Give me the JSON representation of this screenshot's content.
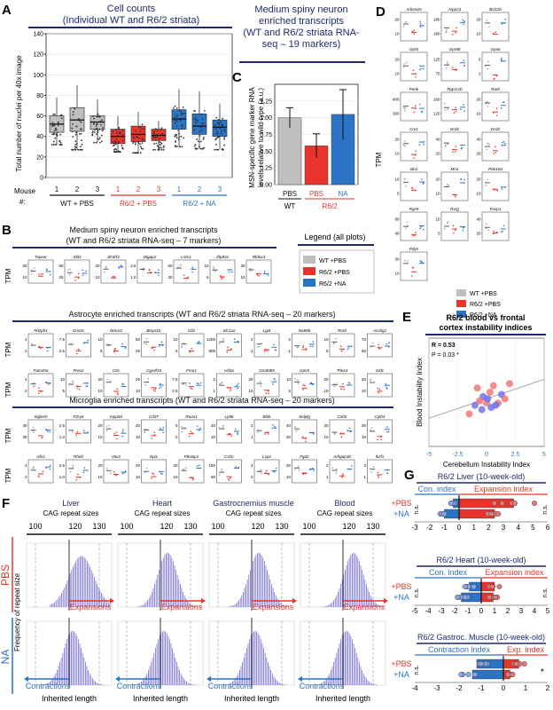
{
  "colors": {
    "wt": "#bfbfbf",
    "r62pbs": "#e8342b",
    "r62na": "#2b73c4",
    "navy": "#1f2a6b",
    "red": "#e8342b",
    "blue": "#2b73c4",
    "hist": "#7a6fd6"
  },
  "panelA": {
    "label": "A",
    "title": [
      "Cell counts",
      "(Individual WT and R6/2 striata)"
    ],
    "ylabel": "Total number of nuclei per 40x image",
    "mouse_label": "Mouse #:",
    "chart_data": {
      "type": "box",
      "ylim": [
        0,
        140
      ],
      "yticks": [
        0,
        20,
        40,
        60,
        80,
        100,
        120,
        140
      ],
      "groups": [
        {
          "name": "WT + PBS",
          "mice": [
            "1",
            "2",
            "3"
          ],
          "medians": [
            52,
            56,
            54
          ],
          "q1": [
            44,
            45,
            47
          ],
          "q3": [
            60,
            68,
            60
          ],
          "wmin": [
            32,
            27,
            34
          ],
          "wmax": [
            78,
            90,
            76
          ]
        },
        {
          "name": "R6/2 + PBS",
          "mice": [
            "1",
            "2",
            "3"
          ],
          "medians": [
            40,
            42,
            41
          ],
          "q1": [
            33,
            35,
            36
          ],
          "q3": [
            47,
            50,
            47
          ],
          "wmin": [
            25,
            24,
            27
          ],
          "wmax": [
            60,
            64,
            55
          ]
        },
        {
          "name": "R6/2 + NA",
          "mice": [
            "1",
            "2",
            "3"
          ],
          "medians": [
            57,
            50,
            49
          ],
          "q1": [
            47,
            42,
            40
          ],
          "q3": [
            66,
            62,
            56
          ],
          "wmin": [
            30,
            28,
            27
          ],
          "wmax": [
            86,
            84,
            72
          ]
        }
      ]
    }
  },
  "panelB": {
    "label": "B",
    "sections": [
      {
        "title": [
          "Medium spiny neuron enriched transcripts",
          "(WT and R6/2 striata RNA-seq – 7 markers)"
        ],
        "rows": [
          [
            {
              "g": "Tspear",
              "t": [
                "20",
                "10"
              ]
            },
            {
              "g": "Slit3",
              "t": [
                "50",
                "25"
              ]
            },
            {
              "g": "Sh3rf2",
              "t": [
                "20",
                "10"
              ]
            },
            {
              "g": "Dlgap2",
              "t": [
                "2.5",
                "1.0"
              ]
            },
            {
              "g": "Lrtm1",
              "t": [
                "60",
                "30"
              ]
            },
            {
              "g": "Zfp831",
              "t": [
                "10",
                "5"
              ]
            },
            {
              "g": "Rbfox3",
              "t": [
                "20",
                "10"
              ]
            }
          ]
        ]
      },
      {
        "title": [
          "Astrocyte enriched transcripts (WT and R6/2 striata RNA-seq – 20 markers)"
        ],
        "rows": [
          [
            {
              "g": "Pdzph1",
              "t": [
                "4",
                "2"
              ]
            },
            {
              "g": "Grin2c",
              "t": [
                "7.5",
                "2.5"
              ]
            },
            {
              "g": "Nmur2",
              "t": [
                "10",
                "5"
              ]
            },
            {
              "g": "Bmpr1b",
              "t": [
                "50",
                "20"
              ]
            },
            {
              "g": "Gli2",
              "t": [
                "10",
                "5"
              ]
            },
            {
              "g": "Slc1a2",
              "t": [
                "1200",
                "800"
              ]
            },
            {
              "g": "Lgi4",
              "t": [
                "2",
                "1"
              ]
            },
            {
              "g": "Nat8l6",
              "t": [
                "2",
                "1"
              ]
            },
            {
              "g": "Rorb",
              "t": [
                "10",
                "5"
              ]
            },
            {
              "g": "Acsbg1",
              "t": [
                "70",
                "50"
              ]
            }
          ],
          [
            {
              "g": "Fam20a",
              "t": [
                "4",
                "2"
              ]
            },
            {
              "g": "Prex2",
              "t": [
                "10",
                "5"
              ]
            },
            {
              "g": "Cbs",
              "t": [
                "20",
                "10"
              ]
            },
            {
              "g": "Cyp4f15",
              "t": [
                "20",
                "10"
              ]
            },
            {
              "g": "Fmo1",
              "t": [
                "7.5",
                "2.5"
              ]
            },
            {
              "g": "Hif3a",
              "t": [
                "2",
                "1"
              ]
            },
            {
              "g": "Gm5089",
              "t": [
                "20",
                "10"
              ]
            },
            {
              "g": "Gpc5",
              "t": [
                "10",
                "5"
              ]
            },
            {
              "g": "Thbs4",
              "t": [
                "20",
                "10"
              ]
            },
            {
              "g": "Gldc",
              "t": [
                "20",
                "10"
              ]
            }
          ]
        ]
      },
      {
        "title": [
          "Microglia enriched transcripts (WT and R6/2 striata RNA-seq – 20 markers)"
        ],
        "rows": [
          [
            {
              "g": "Siglech",
              "t": [
                "40",
                "20"
              ]
            },
            {
              "g": "P2ry6",
              "t": [
                "2.5",
                "1.0"
              ]
            },
            {
              "g": "Inpp5d",
              "t": [
                "20",
                "10"
              ]
            },
            {
              "g": "Cd37",
              "t": [
                "20",
                "10"
              ]
            },
            {
              "g": "Runx1",
              "t": [
                "5",
                "2"
              ]
            },
            {
              "g": "Ly86",
              "t": [
                "20",
                "10"
              ]
            },
            {
              "g": "Blnk",
              "t": [
                "2",
                "1"
              ]
            },
            {
              "g": "Selplg",
              "t": [
                "40",
                "20"
              ]
            },
            {
              "g": "Csf3r",
              "t": [
                "20",
                "10"
              ]
            },
            {
              "g": "Cyth4",
              "t": [
                "20",
                "10"
              ]
            }
          ],
          [
            {
              "g": "Abi3",
              "t": [
                "4",
                "2"
              ]
            },
            {
              "g": "Rhoh",
              "t": [
                "2.5",
                "1.0"
              ]
            },
            {
              "g": "Vav1",
              "t": [
                "20",
                "10"
              ]
            },
            {
              "g": "Spi1",
              "t": [
                "20",
                "10"
              ]
            },
            {
              "g": "Pik3ap1",
              "t": [
                "20",
                "10"
              ]
            },
            {
              "g": "Csf1r",
              "t": [
                "150",
                "50"
              ]
            },
            {
              "g": "Lcp2",
              "t": [
                "4",
                "2"
              ]
            },
            {
              "g": "Fgd2",
              "t": [
                "20",
                "10"
              ]
            },
            {
              "g": "Arhgap30",
              "t": [
                "2",
                "1"
              ]
            },
            {
              "g": "Ikzf1",
              "t": [
                "3",
                "1"
              ]
            }
          ]
        ]
      }
    ],
    "ylabel": "TPM"
  },
  "legend": {
    "title": "Legend (all plots)",
    "items": [
      "WT +PBS",
      "R6/2 +PBS",
      "R6/2 +NA"
    ]
  },
  "header": {
    "title": [
      "Medium spiny neuron",
      "enriched transcripts",
      "(WT and R6/2 striata RNA-",
      "seq – 19 markers)"
    ]
  },
  "panelC": {
    "label": "C",
    "ylabel": "MSN-specific gene marker RNA levels relative to wild-type (a.u.)",
    "chart_data": {
      "type": "bar",
      "categories": [
        "PBS",
        "PBS",
        "NA"
      ],
      "groups": [
        "WT",
        "R6/2"
      ],
      "values": [
        1.0,
        0.58,
        1.05
      ],
      "errors": [
        0.15,
        0.18,
        0.37
      ],
      "ylim": [
        0,
        1.5
      ],
      "yticks": [
        "0.00",
        "0.25",
        "0.50",
        "0.75",
        "1.00",
        "1.25"
      ]
    }
  },
  "panelD": {
    "label": "D",
    "ylabel": "TPM",
    "genes": [
      {
        "g": "Adora2a",
        "t": [
          "20",
          "10"
        ]
      },
      {
        "g": "Arpp21",
        "t": [
          "180",
          "160"
        ]
      },
      {
        "g": "Bcl11b",
        "t": [
          "20",
          "10"
        ]
      },
      {
        "g": "Gpr6",
        "t": [
          "20",
          "10"
        ]
      },
      {
        "g": "Gpr88",
        "t": [
          "125",
          "75"
        ]
      },
      {
        "g": "Gpx6",
        "t": [
          "5",
          "2"
        ]
      },
      {
        "g": "Penk",
        "t": [
          "400",
          "300"
        ]
      },
      {
        "g": "Ppp1r1b",
        "t": [
          "160",
          "120"
        ]
      },
      {
        "g": "Rarb",
        "t": [
          "20",
          "10"
        ]
      },
      {
        "g": "Cnr1",
        "t": [
          "20",
          "10"
        ]
      },
      {
        "g": "Drd1",
        "t": [
          "40",
          "20"
        ]
      },
      {
        "g": "Drd2",
        "t": [
          "40",
          "20"
        ]
      },
      {
        "g": "Ido1",
        "t": [
          "10",
          "5"
        ]
      },
      {
        "g": "Mn1",
        "t": [
          "20",
          "10"
        ]
      },
      {
        "g": "Pde10a",
        "t": [
          "20",
          "10"
        ]
      },
      {
        "g": "Rgs9",
        "t": [
          "80",
          "40"
        ]
      },
      {
        "g": "Rxrg",
        "t": [
          "10",
          "5"
        ]
      },
      {
        "g": "Foxp1",
        "t": [
          "40",
          "20"
        ]
      },
      {
        "g": "Pdyn",
        "t": [
          "30",
          "10"
        ]
      }
    ]
  },
  "panelE": {
    "label": "E",
    "title": [
      "R6/2 blood vs frontal",
      "cortex instability indices"
    ],
    "r": "R = 0.53",
    "p": "P = 0.03 *",
    "xlabel": "Cerebellum Instability Index",
    "ylabel": "Blood Instability Index",
    "chart_data": {
      "type": "scatter",
      "xlim": [
        -5,
        5
      ],
      "ylim": [
        -1,
        4
      ],
      "xticks": [
        "-5",
        "-2.5",
        "0",
        "2.5",
        "5"
      ],
      "points": [
        [
          -1.5,
          0.5,
          "r"
        ],
        [
          -1.0,
          0.9,
          "b"
        ],
        [
          -0.8,
          1.7,
          "r"
        ],
        [
          -0.4,
          0.7,
          "b"
        ],
        [
          -0.3,
          1.3,
          "b"
        ],
        [
          0,
          1.0,
          "r"
        ],
        [
          0.1,
          1.2,
          "b"
        ],
        [
          0.3,
          1.5,
          "r"
        ],
        [
          0.4,
          0.8,
          "b"
        ],
        [
          0.6,
          1.8,
          "r"
        ],
        [
          1.0,
          1.0,
          "r"
        ],
        [
          1.3,
          1.4,
          "b"
        ],
        [
          2.0,
          1.9,
          "r"
        ],
        [
          -0.6,
          1.1,
          "r"
        ],
        [
          0.8,
          0.9,
          "b"
        ],
        [
          1.6,
          1.2,
          "r"
        ]
      ]
    }
  },
  "panelF": {
    "label": "F",
    "ylabel": "Frequency of repeat size",
    "row_pbs": "PBS",
    "row_na": "NA",
    "cag_label": "CAG repeat sizes",
    "expansions": "Expansions",
    "contractions": "Contractions",
    "inherited": "Inherited length",
    "tissues": [
      {
        "name": "Liver",
        "ticks": [
          "100",
          "120",
          "130"
        ]
      },
      {
        "name": "Heart",
        "ticks": [
          "100",
          "120",
          "130"
        ]
      },
      {
        "name": "Gastrocnemius muscle",
        "ticks": [
          "100",
          "120",
          "130"
        ]
      },
      {
        "name": "Blood",
        "ticks": [
          "100",
          "120",
          "130"
        ]
      }
    ]
  },
  "panelG": {
    "label": "G",
    "pbs": "+PBS",
    "na": "+NA",
    "ns": "n.s.",
    "star": "*",
    "plots": [
      {
        "title": "R6/2 Liver (10-week-old)",
        "con": "Con. index",
        "exp": "Expansion index",
        "xticks": [
          "-3",
          "-2",
          "-1",
          "0",
          "1",
          "2",
          "3",
          "4",
          "5",
          "6"
        ],
        "xmin": -3,
        "xmax": 6,
        "exp_label_note": "",
        "chart_data": {
          "pbs_con": -0.4,
          "pbs_exp": 3.7,
          "na_con": -1.0,
          "na_exp": 2.4
        }
      },
      {
        "title": "R6/2 Heart (10-week-old)",
        "con": "Con. index",
        "exp": "Expansion index",
        "xticks": [
          "-5",
          "-4",
          "-3",
          "-2",
          "-1",
          "0",
          "1",
          "2",
          "3",
          "4",
          "5"
        ],
        "xmin": -5,
        "xmax": 5,
        "chart_data": {
          "pbs_con": -0.9,
          "pbs_exp": 1.0,
          "na_con": -1.5,
          "na_exp": 0.9
        }
      },
      {
        "title": "R6/2 Gastroc. Muscle (10-week-old)",
        "con": "Contraction index",
        "exp": "Exp. index",
        "xticks": [
          "-4",
          "-3",
          "-2",
          "-1",
          "0",
          "1",
          "2"
        ],
        "xmin": -4,
        "xmax": 2,
        "chart_data": {
          "pbs_con": -1.2,
          "pbs_exp": 0.7,
          "na_con": -1.4,
          "na_exp": 0.3
        }
      }
    ]
  }
}
